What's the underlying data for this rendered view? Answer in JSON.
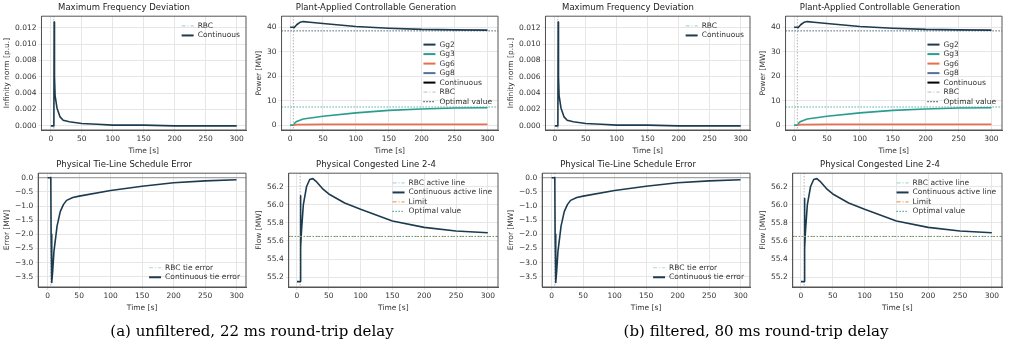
{
  "chart_data": [
    {
      "type": "line",
      "title": "Maximum Frequency Deviation",
      "xlabel": "Time [s]",
      "ylabel": "Infinity norm [p.u.]",
      "xlim": [
        -15,
        315
      ],
      "ylim": [
        -0.0005,
        0.0134
      ],
      "xticks": [
        0,
        50,
        100,
        150,
        200,
        250,
        300
      ],
      "yticks": [
        {
          "value": 0,
          "label": "0.000"
        },
        {
          "value": 0.002,
          "label": "0.002"
        },
        {
          "value": 0.004,
          "label": "0.004"
        },
        {
          "value": 0.006,
          "label": "0.006"
        },
        {
          "value": 0.008,
          "label": "0.008"
        },
        {
          "value": 0.01,
          "label": "0.010"
        },
        {
          "value": 0.012,
          "label": "0.012"
        }
      ],
      "grid": true,
      "legend": "top right",
      "marker": "none",
      "x": [
        0,
        5,
        5.5,
        6,
        7,
        10,
        15,
        20,
        30,
        50,
        75,
        100,
        150,
        200,
        300
      ],
      "series": [
        {
          "name": "RBC",
          "color": "#a8dadc",
          "line_style": "dashed",
          "values": [
            null,
            null,
            null,
            null,
            null,
            null,
            null,
            null,
            null,
            null,
            null,
            null,
            null,
            null,
            null
          ]
        },
        {
          "name": "Continuous",
          "color": "#1d3b4f",
          "line_style": "solid",
          "values": [
            0,
            0,
            0.0127,
            0.006,
            0.0037,
            0.0022,
            0.0011,
            0.0007,
            0.0005,
            0.0003,
            0.0002,
            0.0001,
            0.0001,
            0,
            0
          ]
        }
      ],
      "ref_lines": [
        {
          "axis": "x",
          "value": 5,
          "color": "#999999",
          "line_style": "dotted"
        }
      ]
    },
    {
      "type": "line",
      "title": "Plant-Applied Controllable Generation",
      "xlabel": "Time [s]",
      "ylabel": "Power [MW]",
      "xlim": [
        -13,
        316
      ],
      "ylim": [
        -2,
        44.5
      ],
      "xticks": [
        0,
        50,
        100,
        150,
        200,
        250,
        300
      ],
      "yticks": [
        0,
        10,
        20,
        30,
        40
      ],
      "grid": true,
      "legend": "right",
      "marker": "none",
      "series": [
        {
          "name": "Gg2",
          "color": "#1d3b4f",
          "line_style": "solid",
          "x": [
            0,
            5,
            6,
            10,
            15,
            20,
            30,
            50,
            100,
            150,
            200,
            250,
            300
          ],
          "values": [
            40,
            40,
            39.8,
            41,
            42,
            42.3,
            42,
            41.5,
            40.3,
            39.6,
            39.1,
            38.9,
            38.8
          ]
        },
        {
          "name": "Gg3",
          "color": "#2a9d8f",
          "line_style": "solid",
          "x": [
            0,
            5,
            7,
            10,
            20,
            50,
            100,
            150,
            200,
            250,
            300
          ],
          "values": [
            0,
            0,
            0.8,
            1.5,
            2.5,
            3.6,
            5,
            6,
            6.6,
            7,
            7.1
          ]
        },
        {
          "name": "Gg6",
          "color": "#e76f51",
          "line_style": "solid",
          "x": [
            5,
            10,
            50,
            300
          ],
          "values": [
            0,
            0.2,
            0.3,
            0.3
          ]
        },
        {
          "name": "Gg8",
          "color": "#5a6f9a",
          "line_style": "solid"
        },
        {
          "name": "Continuous",
          "color": "#000000",
          "line_style": "solid"
        },
        {
          "name": "RBC",
          "color": "#cccccc",
          "line_style": "dashed"
        },
        {
          "name": "Optimal value",
          "color": "#1d3b4f",
          "line_style": "dotted",
          "x": [
            -13,
            316
          ],
          "values": [
            38.5,
            38.5
          ]
        },
        {
          "color": "#2a9d8f",
          "line_style": "dotted",
          "x": [
            -13,
            316
          ],
          "values": [
            7.4,
            7.4
          ]
        }
      ],
      "ref_lines": [
        {
          "axis": "x",
          "value": 5,
          "color": "#999999",
          "line_style": "dotted"
        }
      ]
    },
    {
      "type": "line",
      "title": "Physical Tie-Line Schedule Error",
      "xlabel": "Time [s]",
      "ylabel": "Error [MW]",
      "xlim": [
        -15,
        315
      ],
      "ylim": [
        -3.86,
        0.16
      ],
      "xticks": [
        0,
        50,
        100,
        150,
        200,
        250,
        300
      ],
      "yticks": [
        {
          "value": -3.5,
          "label": "−3.5"
        },
        {
          "value": -3,
          "label": "−3.0"
        },
        {
          "value": -2.5,
          "label": "−2.5"
        },
        {
          "value": -2,
          "label": "−2.0"
        },
        {
          "value": -1.5,
          "label": "−1.5"
        },
        {
          "value": -1,
          "label": "−1.0"
        },
        {
          "value": -0.5,
          "label": "−0.5"
        },
        {
          "value": 0,
          "label": "0.0"
        }
      ],
      "grid": true,
      "legend": "bottom right",
      "marker": "none",
      "x": [
        0,
        5,
        5.5,
        6.5,
        8,
        10,
        15,
        20,
        25,
        30,
        40,
        50,
        100,
        150,
        200,
        250,
        300
      ],
      "series": [
        {
          "name": "RBC tie error",
          "color": "#a8dadc",
          "line_style": "dashed",
          "values": [
            null,
            null,
            null,
            null,
            null,
            null,
            null,
            null,
            null,
            null,
            null,
            null,
            null,
            null,
            null,
            null,
            null
          ]
        },
        {
          "name": "Continuous tie error",
          "color": "#1d3b4f",
          "line_style": "solid",
          "values": [
            0,
            0,
            -2,
            -3.7,
            -3.3,
            -2.6,
            -1.7,
            -1.2,
            -0.95,
            -0.8,
            -0.7,
            -0.65,
            -0.45,
            -0.3,
            -0.18,
            -0.11,
            -0.07
          ]
        }
      ],
      "ref_lines": [
        {
          "axis": "x",
          "value": 5,
          "color": "#999999",
          "line_style": "dotted"
        },
        {
          "axis": "y",
          "value": 0,
          "color": "#888888",
          "line_style": "solid"
        }
      ],
      "annotations": [
        "(a) unfiltered, 22 ms round-trip delay"
      ]
    },
    {
      "type": "line",
      "title": "Physical Congested Line 2-4",
      "xlabel": "Time [s]",
      "ylabel": "Flow [MW]",
      "xlim": [
        -13,
        316
      ],
      "ylim": [
        55.09,
        56.35
      ],
      "xticks": [
        0,
        50,
        100,
        150,
        200,
        250,
        300
      ],
      "yticks": [
        55.2,
        55.4,
        55.6,
        55.8,
        {
          "value": 56,
          "label": "56.0"
        },
        56.2
      ],
      "grid": true,
      "legend": "top right",
      "marker": "none",
      "series": [
        {
          "name": "RBC active line",
          "color": "#a8dadc",
          "line_style": "dashed"
        },
        {
          "name": "Continuous active line",
          "color": "#1d3b4f",
          "line_style": "solid",
          "x": [
            0,
            5,
            5.5,
            6,
            7,
            10,
            15,
            20,
            25,
            30,
            40,
            50,
            75,
            100,
            150,
            200,
            250,
            300
          ],
          "values": [
            55.15,
            55.15,
            56.1,
            55.53,
            55.7,
            56.0,
            56.2,
            56.28,
            56.29,
            56.26,
            56.18,
            56.12,
            56.02,
            55.95,
            55.82,
            55.75,
            55.71,
            55.69
          ]
        },
        {
          "name": "Limit",
          "color": "#f4a259",
          "line_style": "dashed",
          "x": [
            -13,
            316
          ],
          "values": [
            55.65,
            55.65
          ]
        },
        {
          "name": "Optimal value",
          "color": "#2a9d8f",
          "line_style": "dotted",
          "x": [
            -13,
            316
          ],
          "values": [
            55.65,
            55.65
          ]
        }
      ],
      "ref_lines": [
        {
          "axis": "x",
          "value": 5,
          "color": "#999999",
          "line_style": "dotted"
        }
      ]
    },
    {
      "type": "line",
      "title": "Maximum Frequency Deviation",
      "xlabel": "Time [s]",
      "ylabel": "Infinity norm [p.u.]",
      "xlim": [
        -15,
        315
      ],
      "ylim": [
        -0.0005,
        0.0134
      ],
      "xticks": [
        0,
        50,
        100,
        150,
        200,
        250,
        300
      ],
      "yticks": [
        {
          "value": 0,
          "label": "0.000"
        },
        {
          "value": 0.002,
          "label": "0.002"
        },
        {
          "value": 0.004,
          "label": "0.004"
        },
        {
          "value": 0.006,
          "label": "0.006"
        },
        {
          "value": 0.008,
          "label": "0.008"
        },
        {
          "value": 0.01,
          "label": "0.010"
        },
        {
          "value": 0.012,
          "label": "0.012"
        }
      ],
      "grid": true,
      "legend": "top right",
      "marker": "none",
      "x": [
        0,
        5,
        5.5,
        6,
        7,
        10,
        15,
        20,
        30,
        50,
        75,
        100,
        150,
        200,
        300
      ],
      "series": [
        {
          "name": "RBC",
          "color": "#a8dadc",
          "line_style": "dashed",
          "values": [
            null,
            null,
            null,
            null,
            null,
            null,
            null,
            null,
            null,
            null,
            null,
            null,
            null,
            null,
            null
          ]
        },
        {
          "name": "Continuous",
          "color": "#1d3b4f",
          "line_style": "solid",
          "values": [
            0,
            0,
            0.0127,
            0.006,
            0.0037,
            0.0022,
            0.0011,
            0.0007,
            0.0005,
            0.0003,
            0.0002,
            0.0001,
            0.0001,
            0,
            0
          ]
        }
      ],
      "ref_lines": [
        {
          "axis": "x",
          "value": 5,
          "color": "#999999",
          "line_style": "dotted"
        }
      ]
    },
    {
      "type": "line",
      "title": "Plant-Applied Controllable Generation",
      "xlabel": "Time [s]",
      "ylabel": "Power [MW]",
      "xlim": [
        -13,
        316
      ],
      "ylim": [
        -2,
        44.5
      ],
      "xticks": [
        0,
        50,
        100,
        150,
        200,
        250,
        300
      ],
      "yticks": [
        0,
        10,
        20,
        30,
        40
      ],
      "grid": true,
      "legend": "right",
      "marker": "none",
      "series": [
        {
          "name": "Gg2",
          "color": "#1d3b4f",
          "line_style": "solid",
          "x": [
            0,
            5,
            6,
            10,
            15,
            20,
            30,
            50,
            100,
            150,
            200,
            250,
            300
          ],
          "values": [
            40,
            40,
            39.8,
            41,
            42,
            42.3,
            42,
            41.5,
            40.3,
            39.6,
            39.1,
            38.9,
            38.8
          ]
        },
        {
          "name": "Gg3",
          "color": "#2a9d8f",
          "line_style": "solid",
          "x": [
            0,
            5,
            7,
            10,
            20,
            50,
            100,
            150,
            200,
            250,
            300
          ],
          "values": [
            0,
            0,
            0.8,
            1.5,
            2.5,
            3.6,
            5,
            6,
            6.6,
            7,
            7.1
          ]
        },
        {
          "name": "Gg6",
          "color": "#e76f51",
          "line_style": "solid",
          "x": [
            5,
            10,
            50,
            300
          ],
          "values": [
            0,
            0.2,
            0.3,
            0.3
          ]
        },
        {
          "name": "Gg8",
          "color": "#5a6f9a",
          "line_style": "solid"
        },
        {
          "name": "Continuous",
          "color": "#000000",
          "line_style": "solid"
        },
        {
          "name": "RBC",
          "color": "#cccccc",
          "line_style": "dashed"
        },
        {
          "name": "Optimal value",
          "color": "#1d3b4f",
          "line_style": "dotted",
          "x": [
            -13,
            316
          ],
          "values": [
            38.5,
            38.5
          ]
        },
        {
          "color": "#2a9d8f",
          "line_style": "dotted",
          "x": [
            -13,
            316
          ],
          "values": [
            7.4,
            7.4
          ]
        }
      ],
      "ref_lines": [
        {
          "axis": "x",
          "value": 5,
          "color": "#999999",
          "line_style": "dotted"
        }
      ]
    },
    {
      "type": "line",
      "title": "Physical Tie-Line Schedule Error",
      "xlabel": "Time [s]",
      "ylabel": "Error [MW]",
      "xlim": [
        -15,
        315
      ],
      "ylim": [
        -3.86,
        0.16
      ],
      "xticks": [
        0,
        50,
        100,
        150,
        200,
        250,
        300
      ],
      "yticks": [
        {
          "value": -3.5,
          "label": "−3.5"
        },
        {
          "value": -3,
          "label": "−3.0"
        },
        {
          "value": -2.5,
          "label": "−2.5"
        },
        {
          "value": -2,
          "label": "−2.0"
        },
        {
          "value": -1.5,
          "label": "−1.5"
        },
        {
          "value": -1,
          "label": "−1.0"
        },
        {
          "value": -0.5,
          "label": "−0.5"
        },
        {
          "value": 0,
          "label": "0.0"
        }
      ],
      "grid": true,
      "legend": "bottom right",
      "marker": "none",
      "x": [
        0,
        5,
        5.5,
        6.5,
        8,
        10,
        15,
        20,
        25,
        30,
        40,
        50,
        100,
        150,
        200,
        250,
        300
      ],
      "series": [
        {
          "name": "RBC tie error",
          "color": "#a8dadc",
          "line_style": "dashed",
          "values": [
            null,
            null,
            null,
            null,
            null,
            null,
            null,
            null,
            null,
            null,
            null,
            null,
            null,
            null,
            null,
            null,
            null
          ]
        },
        {
          "name": "Continuous tie error",
          "color": "#1d3b4f",
          "line_style": "solid",
          "values": [
            0,
            0,
            -2,
            -3.7,
            -3.3,
            -2.6,
            -1.7,
            -1.2,
            -0.95,
            -0.8,
            -0.7,
            -0.65,
            -0.45,
            -0.3,
            -0.18,
            -0.11,
            -0.07
          ]
        }
      ],
      "ref_lines": [
        {
          "axis": "x",
          "value": 5,
          "color": "#999999",
          "line_style": "dotted"
        },
        {
          "axis": "y",
          "value": 0,
          "color": "#888888",
          "line_style": "solid"
        }
      ],
      "annotations": [
        "(b) filtered, 80 ms round-trip delay"
      ]
    },
    {
      "type": "line",
      "title": "Physical Congested Line 2-4",
      "xlabel": "Time [s]",
      "ylabel": "Flow [MW]",
      "xlim": [
        -13,
        316
      ],
      "ylim": [
        55.09,
        56.35
      ],
      "xticks": [
        0,
        50,
        100,
        150,
        200,
        250,
        300
      ],
      "yticks": [
        55.2,
        55.4,
        55.6,
        55.8,
        {
          "value": 56,
          "label": "56.0"
        },
        56.2
      ],
      "grid": true,
      "legend": "top right",
      "marker": "none",
      "series": [
        {
          "name": "RBC active line",
          "color": "#a8dadc",
          "line_style": "dashed"
        },
        {
          "name": "Continuous active line",
          "color": "#1d3b4f",
          "line_style": "solid",
          "x": [
            0,
            5,
            5.5,
            6,
            7,
            10,
            15,
            20,
            25,
            30,
            40,
            50,
            75,
            100,
            150,
            200,
            250,
            300
          ],
          "values": [
            55.15,
            55.15,
            56.07,
            55.52,
            55.7,
            56.0,
            56.2,
            56.28,
            56.29,
            56.26,
            56.18,
            56.12,
            56.02,
            55.95,
            55.82,
            55.75,
            55.71,
            55.69
          ]
        },
        {
          "name": "Limit",
          "color": "#f4a259",
          "line_style": "dashed",
          "x": [
            -13,
            316
          ],
          "values": [
            55.65,
            55.65
          ]
        },
        {
          "name": "Optimal value",
          "color": "#2a9d8f",
          "line_style": "dotted",
          "x": [
            -13,
            316
          ],
          "values": [
            55.65,
            55.65
          ]
        }
      ],
      "ref_lines": [
        {
          "axis": "x",
          "value": 5,
          "color": "#999999",
          "line_style": "dotted"
        }
      ]
    }
  ]
}
